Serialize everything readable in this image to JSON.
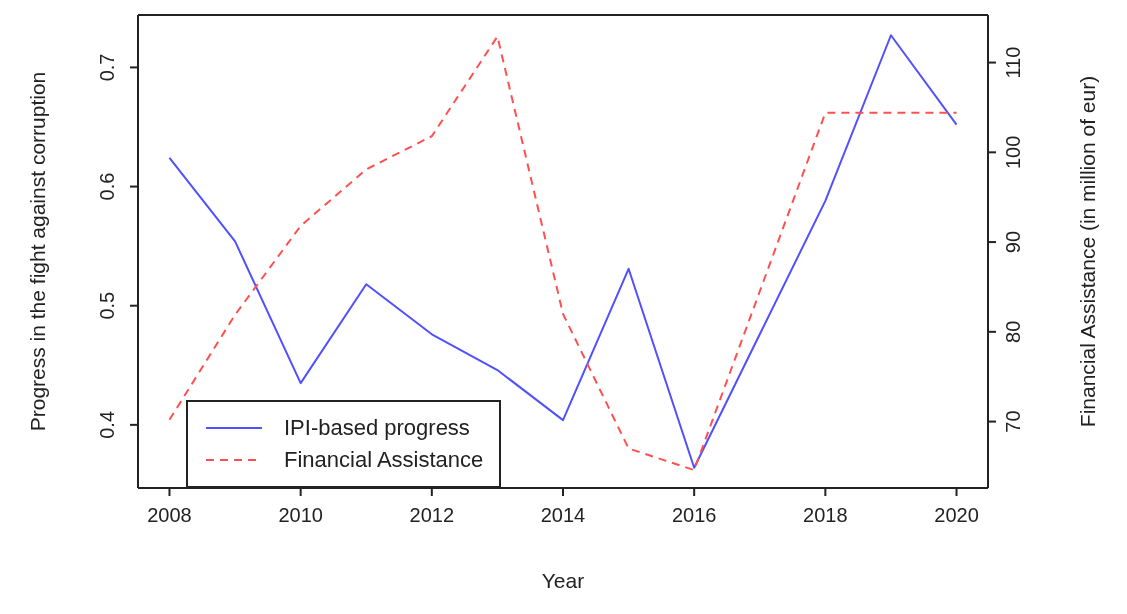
{
  "chart_data": {
    "type": "line",
    "xlabel": "Year",
    "ylabel": "Progress in the fight against corruption",
    "y2label": "Financial Assistance (in million of eur)",
    "x": [
      2008,
      2009,
      2010,
      2011,
      2012,
      2013,
      2014,
      2015,
      2016,
      2017,
      2018,
      2019,
      2020
    ],
    "series": [
      {
        "name": "IPI-based progress",
        "color": "#5050ff",
        "line_style": "solid",
        "values": [
          0.624,
          0.554,
          0.435,
          0.518,
          0.476,
          0.446,
          0.404,
          0.531,
          0.364,
          0.476,
          0.588,
          0.727,
          0.652
        ]
      },
      {
        "name": "Financial Assistance",
        "color": "#ff5050",
        "line_style": "dashed",
        "axis": "y2",
        "values": [
          70.2,
          81.9,
          91.8,
          98.1,
          101.8,
          112.9,
          82,
          67.0,
          64.6,
          84.5,
          104.4,
          104.4,
          104.4
        ]
      }
    ],
    "xlim": [
      2007.52,
      2020.48
    ],
    "xticks": [
      2008,
      2010,
      2012,
      2014,
      2016,
      2018,
      2020
    ],
    "ylim": [
      0.347,
      0.744
    ],
    "yticks": [
      0.4,
      0.5,
      0.6,
      0.7
    ],
    "y2lim": [
      62.6,
      115.3
    ],
    "y2ticks": [
      70,
      80,
      90,
      100,
      110
    ],
    "grid": false,
    "legend": "bottom left",
    "marker": "none"
  }
}
